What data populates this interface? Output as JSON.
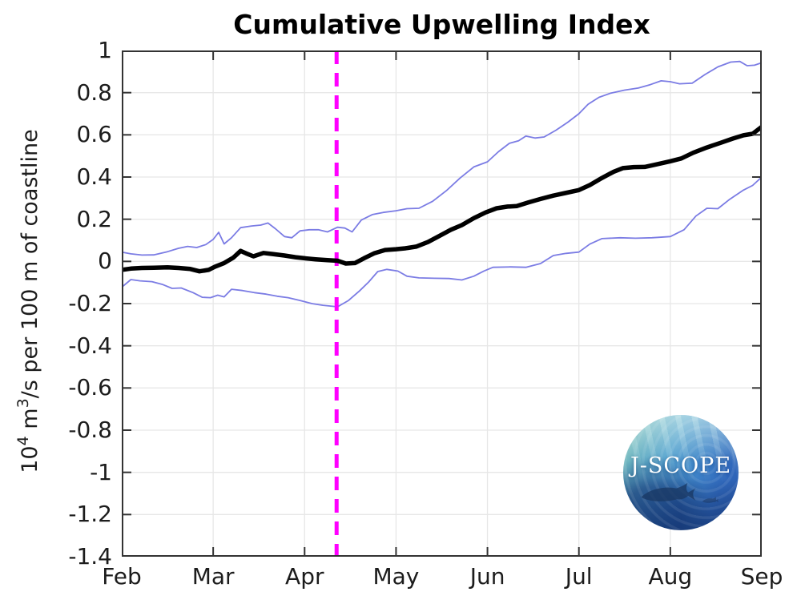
{
  "title": "Cumulative Upwelling Index",
  "logo": {
    "text": "J-SCOPE"
  },
  "plot_style": {
    "background": "#ffffff",
    "grid_color": "#e7e7e7",
    "axis_color": "#333333",
    "tick_color": "#333333",
    "tick_length": 10,
    "band_color": "#7b7ce4",
    "mean_color": "#000000",
    "marker_color": "#ff00ff"
  },
  "chart_data": {
    "type": "line",
    "title": "Cumulative Upwelling Index",
    "xlabel": "",
    "ylabel": "10^4 m^3/s per 100 m of coastline",
    "ylabel_parts": [
      {
        "text": "10"
      },
      {
        "text": "4",
        "sup": true
      },
      {
        "text": " m"
      },
      {
        "text": "3",
        "sup": true
      },
      {
        "text": "/s per 100 m of coastline"
      }
    ],
    "x_unit": "months since Feb 1",
    "xlim": [
      0,
      7
    ],
    "ylim": [
      -1.4,
      1
    ],
    "grid": true,
    "legend": false,
    "x_tick_pos": [
      0,
      1,
      2,
      3,
      4,
      5,
      6,
      7
    ],
    "x_tick_labels": [
      "Feb",
      "Mar",
      "Apr",
      "May",
      "Jun",
      "Jul",
      "Aug",
      "Sep"
    ],
    "y_tick_values": [
      1,
      0.8,
      0.6,
      0.4,
      0.2,
      0,
      -0.2,
      -0.4,
      -0.6,
      -0.8,
      -1,
      -1.2,
      -1.4
    ],
    "y_tick_labels": [
      "1",
      "0.8",
      "0.6",
      "0.4",
      "0.2",
      "0",
      "-0.2",
      "-0.4",
      "-0.6",
      "-0.8",
      "-1",
      "-1.2",
      "-1.4"
    ],
    "series": [
      {
        "name": "upper-uncertainty-bound",
        "role": "band",
        "color": "#7b7ce4",
        "width": 1.8,
        "points": [
          [
            0.0,
            0.044
          ],
          [
            0.1,
            0.036
          ],
          [
            0.22,
            0.03
          ],
          [
            0.35,
            0.031
          ],
          [
            0.5,
            0.046
          ],
          [
            0.62,
            0.062
          ],
          [
            0.72,
            0.071
          ],
          [
            0.82,
            0.066
          ],
          [
            0.92,
            0.08
          ],
          [
            1.0,
            0.104
          ],
          [
            1.06,
            0.138
          ],
          [
            1.12,
            0.083
          ],
          [
            1.2,
            0.112
          ],
          [
            1.3,
            0.16
          ],
          [
            1.42,
            0.168
          ],
          [
            1.52,
            0.172
          ],
          [
            1.6,
            0.182
          ],
          [
            1.68,
            0.155
          ],
          [
            1.78,
            0.118
          ],
          [
            1.86,
            0.112
          ],
          [
            1.95,
            0.145
          ],
          [
            2.05,
            0.15
          ],
          [
            2.15,
            0.15
          ],
          [
            2.25,
            0.14
          ],
          [
            2.36,
            0.162
          ],
          [
            2.44,
            0.158
          ],
          [
            2.52,
            0.14
          ],
          [
            2.62,
            0.196
          ],
          [
            2.74,
            0.222
          ],
          [
            2.86,
            0.232
          ],
          [
            3.0,
            0.24
          ],
          [
            3.12,
            0.25
          ],
          [
            3.25,
            0.252
          ],
          [
            3.4,
            0.285
          ],
          [
            3.55,
            0.335
          ],
          [
            3.7,
            0.395
          ],
          [
            3.85,
            0.448
          ],
          [
            4.0,
            0.472
          ],
          [
            4.12,
            0.52
          ],
          [
            4.24,
            0.56
          ],
          [
            4.34,
            0.572
          ],
          [
            4.42,
            0.594
          ],
          [
            4.52,
            0.585
          ],
          [
            4.62,
            0.59
          ],
          [
            4.75,
            0.622
          ],
          [
            4.88,
            0.66
          ],
          [
            5.0,
            0.7
          ],
          [
            5.1,
            0.745
          ],
          [
            5.22,
            0.778
          ],
          [
            5.35,
            0.798
          ],
          [
            5.5,
            0.812
          ],
          [
            5.65,
            0.822
          ],
          [
            5.78,
            0.838
          ],
          [
            5.9,
            0.856
          ],
          [
            6.0,
            0.852
          ],
          [
            6.1,
            0.842
          ],
          [
            6.24,
            0.845
          ],
          [
            6.38,
            0.886
          ],
          [
            6.52,
            0.922
          ],
          [
            6.66,
            0.945
          ],
          [
            6.76,
            0.948
          ],
          [
            6.84,
            0.928
          ],
          [
            6.92,
            0.93
          ],
          [
            7.0,
            0.942
          ]
        ]
      },
      {
        "name": "lower-uncertainty-bound",
        "role": "band",
        "color": "#7b7ce4",
        "width": 1.8,
        "points": [
          [
            0.0,
            -0.122
          ],
          [
            0.1,
            -0.086
          ],
          [
            0.2,
            -0.092
          ],
          [
            0.33,
            -0.096
          ],
          [
            0.45,
            -0.11
          ],
          [
            0.55,
            -0.128
          ],
          [
            0.65,
            -0.126
          ],
          [
            0.78,
            -0.148
          ],
          [
            0.88,
            -0.17
          ],
          [
            0.97,
            -0.172
          ],
          [
            1.05,
            -0.16
          ],
          [
            1.12,
            -0.168
          ],
          [
            1.2,
            -0.132
          ],
          [
            1.32,
            -0.138
          ],
          [
            1.45,
            -0.148
          ],
          [
            1.58,
            -0.155
          ],
          [
            1.7,
            -0.165
          ],
          [
            1.82,
            -0.172
          ],
          [
            1.95,
            -0.185
          ],
          [
            2.08,
            -0.2
          ],
          [
            2.2,
            -0.208
          ],
          [
            2.36,
            -0.215
          ],
          [
            2.48,
            -0.185
          ],
          [
            2.6,
            -0.14
          ],
          [
            2.7,
            -0.098
          ],
          [
            2.8,
            -0.048
          ],
          [
            2.9,
            -0.038
          ],
          [
            3.02,
            -0.046
          ],
          [
            3.12,
            -0.07
          ],
          [
            3.25,
            -0.078
          ],
          [
            3.42,
            -0.08
          ],
          [
            3.58,
            -0.081
          ],
          [
            3.72,
            -0.088
          ],
          [
            3.85,
            -0.07
          ],
          [
            3.96,
            -0.046
          ],
          [
            4.06,
            -0.028
          ],
          [
            4.25,
            -0.026
          ],
          [
            4.42,
            -0.028
          ],
          [
            4.58,
            -0.01
          ],
          [
            4.72,
            0.028
          ],
          [
            4.86,
            0.038
          ],
          [
            5.0,
            0.044
          ],
          [
            5.12,
            0.082
          ],
          [
            5.25,
            0.108
          ],
          [
            5.45,
            0.112
          ],
          [
            5.62,
            0.11
          ],
          [
            5.8,
            0.112
          ],
          [
            6.0,
            0.118
          ],
          [
            6.15,
            0.15
          ],
          [
            6.28,
            0.215
          ],
          [
            6.4,
            0.252
          ],
          [
            6.52,
            0.25
          ],
          [
            6.65,
            0.295
          ],
          [
            6.8,
            0.338
          ],
          [
            6.9,
            0.36
          ],
          [
            7.0,
            0.4
          ]
        ]
      },
      {
        "name": "cumulative-upwelling-mean",
        "role": "mean",
        "color": "#000000",
        "width": 5.5,
        "points": [
          [
            0.0,
            -0.04
          ],
          [
            0.1,
            -0.034
          ],
          [
            0.22,
            -0.031
          ],
          [
            0.35,
            -0.03
          ],
          [
            0.5,
            -0.028
          ],
          [
            0.62,
            -0.031
          ],
          [
            0.75,
            -0.036
          ],
          [
            0.85,
            -0.047
          ],
          [
            0.95,
            -0.04
          ],
          [
            1.02,
            -0.025
          ],
          [
            1.12,
            -0.008
          ],
          [
            1.22,
            0.018
          ],
          [
            1.3,
            0.05
          ],
          [
            1.36,
            0.038
          ],
          [
            1.44,
            0.024
          ],
          [
            1.55,
            0.04
          ],
          [
            1.65,
            0.035
          ],
          [
            1.78,
            0.028
          ],
          [
            1.9,
            0.02
          ],
          [
            2.0,
            0.015
          ],
          [
            2.12,
            0.01
          ],
          [
            2.25,
            0.006
          ],
          [
            2.36,
            0.003
          ],
          [
            2.45,
            -0.01
          ],
          [
            2.55,
            -0.008
          ],
          [
            2.65,
            0.015
          ],
          [
            2.76,
            0.038
          ],
          [
            2.88,
            0.054
          ],
          [
            3.0,
            0.058
          ],
          [
            3.1,
            0.062
          ],
          [
            3.22,
            0.07
          ],
          [
            3.35,
            0.092
          ],
          [
            3.48,
            0.122
          ],
          [
            3.6,
            0.15
          ],
          [
            3.72,
            0.172
          ],
          [
            3.85,
            0.205
          ],
          [
            3.98,
            0.232
          ],
          [
            4.1,
            0.252
          ],
          [
            4.22,
            0.26
          ],
          [
            4.32,
            0.262
          ],
          [
            4.45,
            0.28
          ],
          [
            4.58,
            0.296
          ],
          [
            4.72,
            0.312
          ],
          [
            4.85,
            0.324
          ],
          [
            5.0,
            0.338
          ],
          [
            5.12,
            0.362
          ],
          [
            5.25,
            0.395
          ],
          [
            5.38,
            0.425
          ],
          [
            5.48,
            0.442
          ],
          [
            5.6,
            0.447
          ],
          [
            5.72,
            0.448
          ],
          [
            5.85,
            0.46
          ],
          [
            6.0,
            0.475
          ],
          [
            6.12,
            0.488
          ],
          [
            6.25,
            0.515
          ],
          [
            6.4,
            0.54
          ],
          [
            6.55,
            0.562
          ],
          [
            6.68,
            0.582
          ],
          [
            6.8,
            0.598
          ],
          [
            6.9,
            0.605
          ],
          [
            7.0,
            0.638
          ]
        ]
      }
    ],
    "annotations": [
      {
        "type": "vline",
        "name": "forecast-start-marker",
        "x": 2.35,
        "color": "#ff00ff",
        "style": "dashed",
        "width": 5,
        "dash": [
          17,
          11
        ]
      }
    ]
  }
}
